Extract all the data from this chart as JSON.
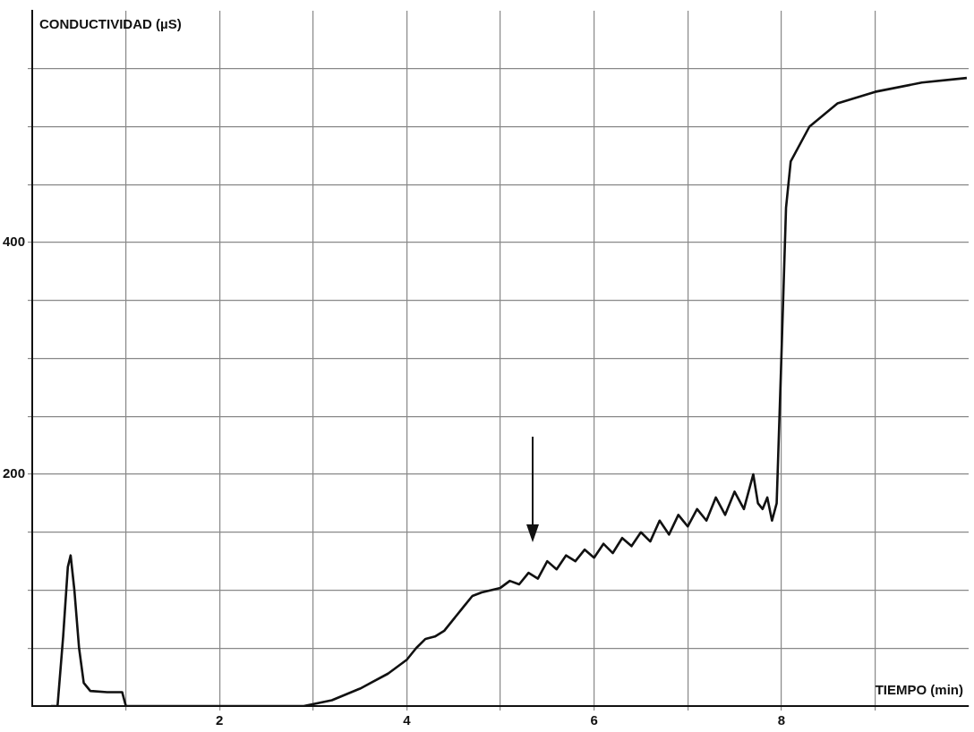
{
  "chart_data": {
    "type": "line",
    "xlabel": "TIEMPO (min)",
    "ylabel": "CONDUCTIVIDAD (µS)",
    "x": [
      0.2,
      0.27,
      0.33,
      0.38,
      0.41,
      0.45,
      0.5,
      0.55,
      0.62,
      0.8,
      0.96,
      1.0,
      2.5,
      2.9,
      3.2,
      3.5,
      3.8,
      4.0,
      4.1,
      4.2,
      4.3,
      4.4,
      4.5,
      4.6,
      4.7,
      4.8,
      5.0,
      5.1,
      5.2,
      5.3,
      5.4,
      5.5,
      5.6,
      5.7,
      5.8,
      5.9,
      6.0,
      6.1,
      6.2,
      6.3,
      6.4,
      6.5,
      6.6,
      6.7,
      6.8,
      6.9,
      7.0,
      7.1,
      7.2,
      7.3,
      7.4,
      7.5,
      7.6,
      7.7,
      7.75,
      7.8,
      7.85,
      7.9,
      7.95,
      8.0,
      8.05,
      8.1,
      8.3,
      8.6,
      9.0,
      9.5,
      9.98
    ],
    "series": [
      {
        "color": "#111111",
        "values": [
          0,
          0,
          60,
          120,
          130,
          100,
          50,
          20,
          13,
          12,
          12,
          0,
          0,
          0,
          5,
          15,
          28,
          40,
          50,
          58,
          60,
          65,
          75,
          85,
          95,
          98,
          102,
          108,
          105,
          115,
          110,
          125,
          118,
          130,
          125,
          135,
          128,
          140,
          132,
          145,
          138,
          150,
          142,
          160,
          148,
          165,
          155,
          170,
          160,
          180,
          165,
          185,
          170,
          200,
          175,
          170,
          180,
          160,
          175,
          300,
          430,
          470,
          500,
          520,
          530,
          538,
          542
        ]
      }
    ],
    "xlim": [
      0,
      10
    ],
    "xticks": [
      {
        "value": 1,
        "label": null
      },
      2,
      {
        "value": 3,
        "label": null
      },
      4,
      {
        "value": 5,
        "label": null
      },
      6,
      {
        "value": 7,
        "label": null
      },
      8,
      {
        "value": 9,
        "label": null
      }
    ],
    "ylim": [
      0,
      600
    ],
    "yticks": [
      {
        "value": 50,
        "label": null
      },
      {
        "value": 100,
        "label": null
      },
      {
        "value": 150,
        "label": null
      },
      200,
      {
        "value": 250,
        "label": null
      },
      {
        "value": 300,
        "label": null
      },
      {
        "value": 350,
        "label": null
      },
      400,
      {
        "value": 450,
        "label": null
      },
      {
        "value": 500,
        "label": null
      },
      {
        "value": 550,
        "label": null
      }
    ],
    "grid": true,
    "legend": false,
    "marker": "none",
    "line_style": "solid"
  }
}
